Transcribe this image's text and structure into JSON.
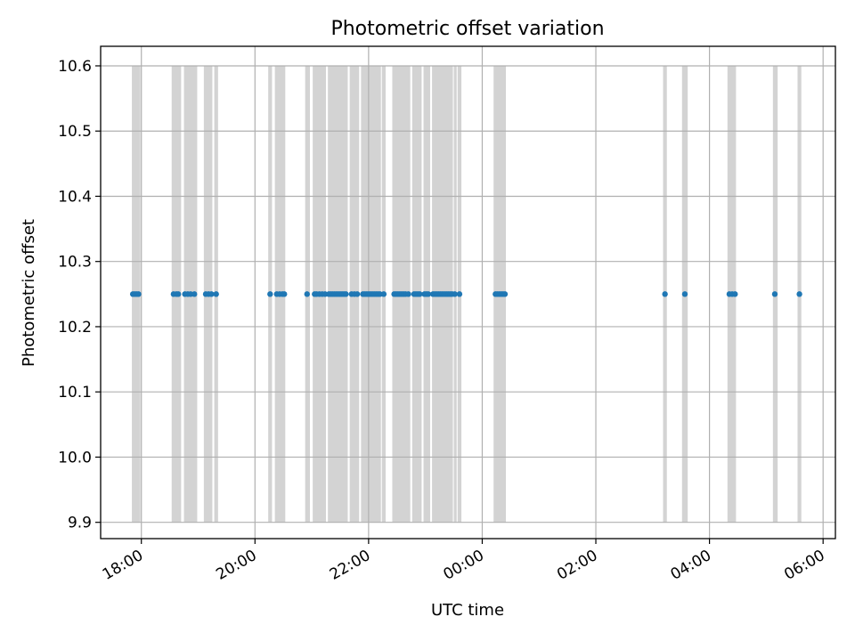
{
  "colors": {
    "points": "#1f77b4",
    "spans": "#d3d3d3",
    "grid": "#b0b0b0",
    "axes": "#000000"
  },
  "chart_data": {
    "type": "scatter",
    "title": "Photometric offset variation",
    "xlabel": "UTC time",
    "ylabel": "Photometric offset",
    "grid": true,
    "x_axis": "time",
    "xlim": [
      "17:17",
      "06:13"
    ],
    "ylim": [
      9.875,
      10.63
    ],
    "xticks": [
      "18:00",
      "20:00",
      "22:00",
      "00:00",
      "02:00",
      "04:00",
      "06:00"
    ],
    "yticks": [
      "9.9",
      "10.0",
      "10.1",
      "10.2",
      "10.3",
      "10.4",
      "10.5",
      "10.6"
    ],
    "span_range": [
      9.9,
      10.6
    ],
    "spans": [
      [
        "17:50",
        "17:59"
      ],
      [
        "18:32",
        "18:42"
      ],
      [
        "18:45",
        "18:59"
      ],
      [
        "19:06",
        "19:15"
      ],
      [
        "19:17",
        "19:21"
      ],
      [
        "20:14",
        "20:18"
      ],
      [
        "20:21",
        "20:32"
      ],
      [
        "20:53",
        "20:58"
      ],
      [
        "21:01",
        "21:15"
      ],
      [
        "21:17",
        "21:38"
      ],
      [
        "21:40",
        "21:50"
      ],
      [
        "21:52",
        "22:13"
      ],
      [
        "22:14",
        "22:18"
      ],
      [
        "22:25",
        "22:44"
      ],
      [
        "22:46",
        "22:56"
      ],
      [
        "22:58",
        "23:05"
      ],
      [
        "23:07",
        "23:29"
      ],
      [
        "23:30",
        "23:33"
      ],
      [
        "23:34",
        "23:38"
      ],
      [
        "00:12",
        "00:25"
      ],
      [
        "03:11",
        "03:15"
      ],
      [
        "03:31",
        "03:37"
      ],
      [
        "04:19",
        "04:28"
      ],
      [
        "05:07",
        "05:12"
      ],
      [
        "05:33",
        "05:37"
      ]
    ],
    "series": [
      {
        "y": 10.25,
        "x": [
          "17:51",
          "17:53",
          "17:55",
          "17:57",
          "18:34",
          "18:37",
          "18:39",
          "18:46",
          "18:49",
          "18:52",
          "18:56",
          "19:08",
          "19:11",
          "19:14",
          "19:19",
          "20:16",
          "20:23",
          "20:26",
          "20:29",
          "20:31",
          "20:55",
          "21:03",
          "21:05",
          "21:08",
          "21:11",
          "21:14",
          "21:18",
          "21:20",
          "21:22",
          "21:24",
          "21:26",
          "21:28",
          "21:30",
          "21:32",
          "21:34",
          "21:36",
          "21:42",
          "21:45",
          "21:48",
          "21:54",
          "21:56",
          "21:58",
          "22:00",
          "22:02",
          "22:04",
          "22:06",
          "22:08",
          "22:10",
          "22:12",
          "22:16",
          "22:27",
          "22:29",
          "22:31",
          "22:33",
          "22:35",
          "22:37",
          "22:39",
          "22:42",
          "22:48",
          "22:50",
          "22:52",
          "22:54",
          "22:59",
          "23:01",
          "23:03",
          "23:08",
          "23:10",
          "23:12",
          "23:14",
          "23:16",
          "23:18",
          "23:20",
          "23:22",
          "23:24",
          "23:26",
          "23:28",
          "23:31",
          "23:36",
          "00:14",
          "00:16",
          "00:18",
          "00:20",
          "00:22",
          "00:24",
          "03:13",
          "03:34",
          "04:21",
          "04:24",
          "04:27",
          "05:09",
          "05:35"
        ]
      }
    ]
  }
}
